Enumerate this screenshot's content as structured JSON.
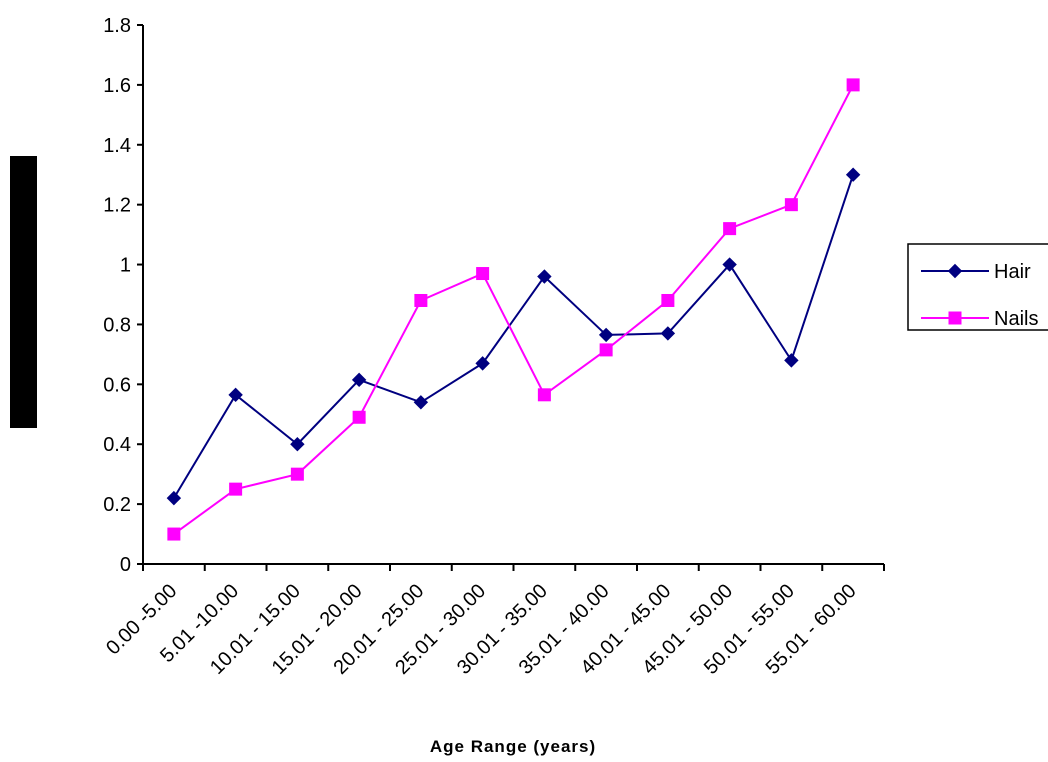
{
  "chart_data": {
    "type": "line",
    "categories": [
      "0.00 -5.00",
      "5.01 -10.00",
      "10.01 - 15.00",
      "15.01 - 20.00",
      "20.01 - 25.00",
      "25.01 - 30.00",
      "30.01 - 35.00",
      "35.01 - 40.00",
      "40.01 - 45.00",
      "45.01 - 50.00",
      "50.01 - 55.00",
      "55.01 - 60.00"
    ],
    "series": [
      {
        "name": "Hair",
        "color": "#000080",
        "marker": "diamond",
        "values": [
          0.22,
          0.565,
          0.4,
          0.615,
          0.54,
          0.67,
          0.96,
          0.765,
          0.77,
          1.0,
          0.68,
          1.3
        ]
      },
      {
        "name": "Nails",
        "color": "#FF00FF",
        "marker": "square",
        "values": [
          0.1,
          0.25,
          0.3,
          0.49,
          0.88,
          0.97,
          0.565,
          0.715,
          0.88,
          1.12,
          1.2,
          1.6
        ]
      }
    ],
    "yticks": [
      "0",
      "0.2",
      "0.4",
      "0.6",
      "0.8",
      "1",
      "1.2",
      "1.4",
      "1.6",
      "1.8"
    ],
    "ylim": [
      0,
      1.8
    ],
    "xlabel": "Age Range (years)",
    "ylabel": "",
    "title": "",
    "legend": "right",
    "grid": false
  }
}
